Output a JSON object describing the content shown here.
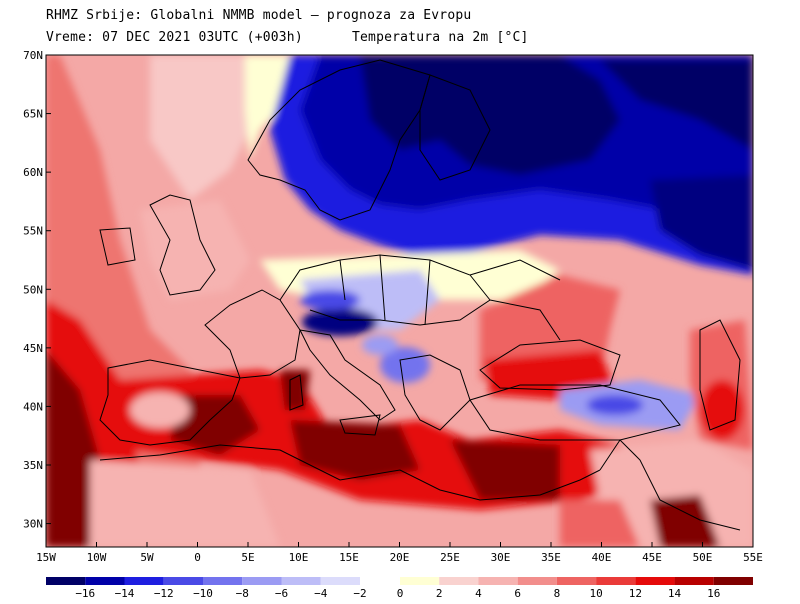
{
  "header": {
    "line1": "RHMZ Srbije: Globalni NMMB model — prognoza za Evropu",
    "line2_left": "Vreme: 07 DEC 2021 03UTC (+003h)",
    "line2_right": "Temperatura na 2m [°C]"
  },
  "map": {
    "lat_labels": [
      "70N",
      "65N",
      "60N",
      "55N",
      "50N",
      "45N",
      "40N",
      "35N",
      "30N"
    ],
    "lon_labels": [
      "15W",
      "10W",
      "5W",
      "0",
      "5E",
      "10E",
      "15E",
      "20E",
      "25E",
      "30E",
      "35E",
      "40E",
      "45E",
      "50E",
      "55E"
    ],
    "lat_range": [
      28,
      70
    ],
    "lon_range": [
      -15,
      55
    ]
  },
  "legend": {
    "ticks": [
      "-16",
      "-14",
      "-12",
      "-10",
      "-8",
      "-6",
      "-4",
      "-2",
      "0",
      "2",
      "4",
      "6",
      "8",
      "10",
      "12",
      "14",
      "16"
    ],
    "cold_colors": [
      "#000066",
      "#0000a8",
      "#1e1ee0",
      "#4a4ae6",
      "#7373ee",
      "#9b9bf3",
      "#bdbdf7",
      "#dcdcfb"
    ],
    "warm_colors": [
      "#ffffd4",
      "#f9d2cf",
      "#f6b3b1",
      "#f28e8c",
      "#ee6462",
      "#ea3b39",
      "#e50a0a",
      "#b80000",
      "#800000"
    ]
  },
  "colors": {
    "cold_deep": "#000066",
    "cold_mid": "#4a4ae6",
    "neutral": "#ffffd4",
    "warm_light": "#f6b3b1",
    "warm_mid": "#ee6462",
    "warm_hot": "#e50a0a",
    "warm_deep": "#800000"
  }
}
